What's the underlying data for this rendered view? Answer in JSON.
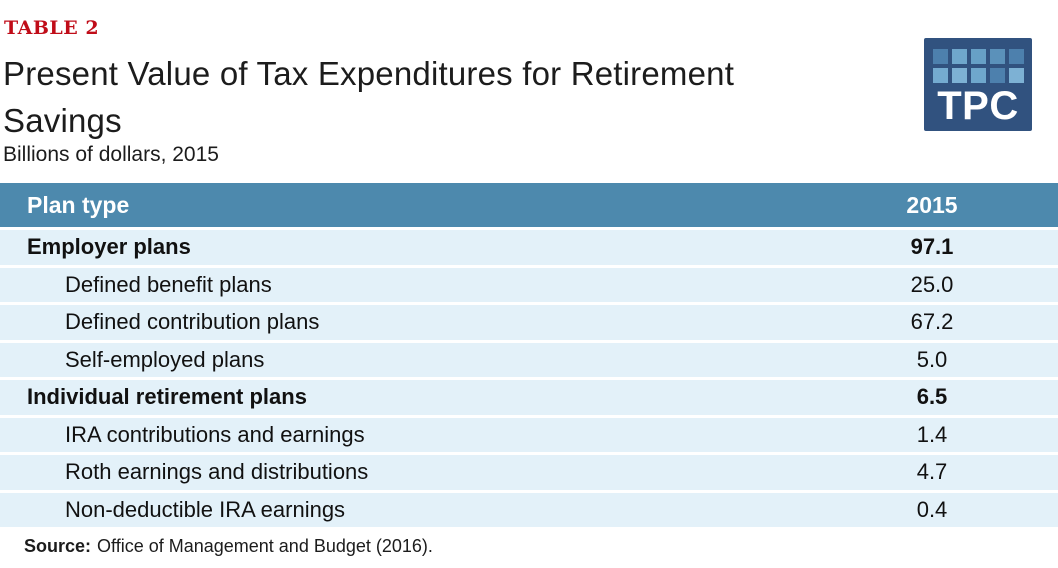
{
  "header": {
    "table_label": "TABLE 2",
    "title_lines": [
      "Present Value of Tax Expenditures for Retirement",
      "Savings"
    ],
    "subtitle": "Billions of dollars, 2015"
  },
  "logo": {
    "text": "TPC",
    "background": "#31527f",
    "square_colors": [
      "#4d80ad",
      "#6fa7cc",
      "#67a0c6",
      "#5b91ba",
      "#4d80ad",
      "#74abd0",
      "#7db1d4",
      "#6fa7cc",
      "#4d80ad",
      "#7db1d4"
    ]
  },
  "table": {
    "header": {
      "plan_type": "Plan type",
      "year": "2015"
    },
    "rows": [
      {
        "label": "Employer plans",
        "value": "97.1",
        "bold": true,
        "indent": false
      },
      {
        "label": "Defined benefit plans",
        "value": "25.0",
        "bold": false,
        "indent": true
      },
      {
        "label": "Defined contribution plans",
        "value": "67.2",
        "bold": false,
        "indent": true
      },
      {
        "label": "Self-employed plans",
        "value": "5.0",
        "bold": false,
        "indent": true
      },
      {
        "label": "Individual retirement plans",
        "value": "6.5",
        "bold": true,
        "indent": false
      },
      {
        "label": "IRA contributions and earnings",
        "value": "1.4",
        "bold": false,
        "indent": true
      },
      {
        "label": "Roth earnings and distributions",
        "value": "4.7",
        "bold": false,
        "indent": true
      },
      {
        "label": "Non-deductible IRA earnings",
        "value": "0.4",
        "bold": false,
        "indent": true
      }
    ]
  },
  "source": {
    "label": "Source:",
    "text": "Office of Management and Budget (2016)."
  },
  "colors": {
    "accent_red": "#c00c18",
    "table_header_blue": "#4d89ad",
    "row_light_blue": "#e3f1f9",
    "logo_navy": "#31527f",
    "text_black": "#1c1c1c",
    "header_text_white": "#ffffff"
  },
  "chart_data": {
    "type": "table",
    "label": "TABLE 2",
    "title": "Present Value of Tax Expenditures for Retirement Savings",
    "subtitle": "Billions of dollars, 2015",
    "units": "Billions of dollars",
    "year": 2015,
    "columns": [
      "Plan type",
      "2015"
    ],
    "rows": [
      [
        "Employer plans",
        97.1
      ],
      [
        "Defined benefit plans",
        25.0
      ],
      [
        "Defined contribution plans",
        67.2
      ],
      [
        "Self-employed plans",
        5.0
      ],
      [
        "Individual retirement plans",
        6.5
      ],
      [
        "IRA contributions and earnings",
        1.4
      ],
      [
        "Roth earnings and distributions",
        4.7
      ],
      [
        "Non-deductible IRA earnings",
        0.4
      ]
    ],
    "hierarchy": {
      "Employer plans": [
        "Defined benefit plans",
        "Defined contribution plans",
        "Self-employed plans"
      ],
      "Individual retirement plans": [
        "IRA contributions and earnings",
        "Roth earnings and distributions",
        "Non-deductible IRA earnings"
      ]
    },
    "source": "Office of Management and Budget (2016)."
  }
}
